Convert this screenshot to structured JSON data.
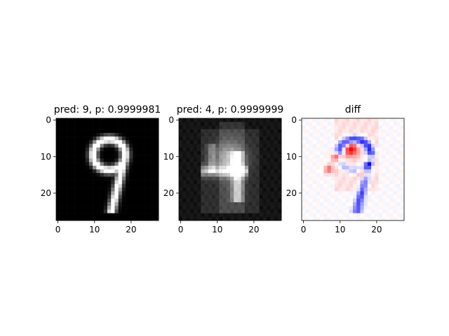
{
  "chart_data": [
    {
      "type": "heatmap",
      "title": "pred: 9, p: 0.9999981",
      "colormap": "gray",
      "xlim": [
        0,
        28
      ],
      "ylim": [
        28,
        0
      ],
      "xticks": [
        "0",
        "10",
        "20"
      ],
      "yticks": [
        "0",
        "10",
        "20"
      ],
      "content": "MNIST digit image, 28x28 pixels, white handwritten digit 9 on black background"
    },
    {
      "type": "heatmap",
      "title": "pred: 4, p: 0.9999999",
      "colormap": "gray",
      "xlim": [
        0,
        28
      ],
      "ylim": [
        28,
        0
      ],
      "xticks": [
        "0",
        "10",
        "20"
      ],
      "yticks": [
        "0",
        "10",
        "20"
      ],
      "content": "Perturbed 28x28 image resembling a gray digit 4 on dark background"
    },
    {
      "type": "heatmap",
      "title": "diff",
      "colormap": "bwr",
      "xlim": [
        0,
        28
      ],
      "ylim": [
        28,
        0
      ],
      "xticks": [
        "0",
        "10",
        "20"
      ],
      "yticks": [
        "0",
        "10",
        "20"
      ],
      "content": "Difference map, 28x28, blue where pixels decreased, red where increased, mostly near-white background"
    }
  ]
}
